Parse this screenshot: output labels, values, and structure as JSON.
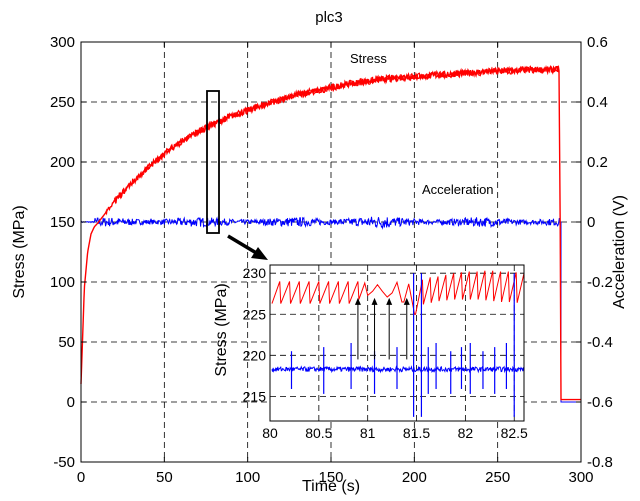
{
  "chart_data": {
    "type": "line",
    "title": "plc3",
    "xlabel": "Time (s)",
    "ylabel": "Stress (MPa)",
    "ylabel_right": "Acceleration (V)",
    "xlim": [
      0,
      300
    ],
    "ylim": [
      -50,
      300
    ],
    "ylim_right": [
      -0.8,
      0.6
    ],
    "x_ticks": [
      "0",
      "50",
      "100",
      "150",
      "200",
      "250",
      "300"
    ],
    "y_ticks": [
      "-50",
      "0",
      "50",
      "100",
      "150",
      "200",
      "250",
      "300"
    ],
    "y_right_ticks": [
      "-0.8",
      "-0.6",
      "-0.4",
      "-0.2",
      "0",
      "0.2",
      "0.4",
      "0.6"
    ],
    "grid": true,
    "series": [
      {
        "name": "Stress",
        "color": "#ff0000",
        "axis": "left",
        "x": [
          0,
          2,
          4,
          6,
          8,
          10,
          15,
          20,
          30,
          40,
          50,
          60,
          70,
          80,
          90,
          100,
          110,
          120,
          130,
          140,
          150,
          160,
          170,
          180,
          190,
          200,
          210,
          220,
          230,
          240,
          250,
          260,
          270,
          280,
          287,
          287.5,
          288,
          290,
          300
        ],
        "y": [
          15,
          95,
          125,
          140,
          146,
          149,
          158,
          167,
          182,
          195,
          207,
          217,
          225,
          232,
          238,
          243,
          248,
          252,
          256,
          259,
          262,
          265,
          267,
          269,
          270,
          271,
          272,
          273,
          274,
          275,
          276,
          276,
          277,
          277,
          277,
          150,
          2,
          2,
          2
        ]
      },
      {
        "name": "Acceleration",
        "color": "#0000ff",
        "axis": "right",
        "x": [
          0,
          288,
          288,
          300
        ],
        "y": [
          0,
          0,
          -0.6,
          -0.6
        ]
      }
    ],
    "annotations": [
      "Stress",
      "Acceleration"
    ],
    "inset": {
      "xlim": [
        80,
        82.6
      ],
      "ylim": [
        212,
        231
      ],
      "x_ticks": [
        "80",
        "80.5",
        "81",
        "81.5",
        "82",
        "82.5"
      ],
      "y_ticks": [
        "215",
        "220",
        "225",
        "230"
      ],
      "ylabel": "Stress (MPa)",
      "stress_sawtooth": {
        "x": [
          80.02,
          80.1,
          80.11,
          80.2,
          80.21,
          80.3,
          80.31,
          80.4,
          80.41,
          80.5,
          80.51,
          80.6,
          80.61,
          80.7,
          80.71,
          80.8,
          80.81,
          80.9,
          80.91,
          80.97,
          81.0,
          81.05,
          81.1,
          81.15,
          81.2,
          81.25,
          81.3,
          81.35,
          81.37,
          81.42,
          81.48,
          81.49,
          81.56,
          81.57,
          81.64,
          81.65,
          81.72,
          81.73,
          81.8,
          81.81,
          81.88,
          81.89,
          81.96,
          81.97,
          82.04,
          82.05,
          82.12,
          82.13,
          82.2,
          82.21,
          82.28,
          82.29,
          82.36,
          82.37,
          82.44,
          82.45,
          82.52,
          82.53,
          82.6
        ],
        "y": [
          226.3,
          229.0,
          226.3,
          229.0,
          226.3,
          229.0,
          226.3,
          229.0,
          226.3,
          229.0,
          226.3,
          229.0,
          226.3,
          229.0,
          226.3,
          229.0,
          226.3,
          229.0,
          226.8,
          228.8,
          227.3,
          227.8,
          228.6,
          227.8,
          227.1,
          227.6,
          228.9,
          226.5,
          226.5,
          228.7,
          225.0,
          225.0,
          229.2,
          226.2,
          229.5,
          226.4,
          229.6,
          226.6,
          229.8,
          226.7,
          230.0,
          226.8,
          230.1,
          226.8,
          230.2,
          226.8,
          230.2,
          226.8,
          230.3,
          226.7,
          230.3,
          226.6,
          230.2,
          226.5,
          230.2,
          226.5,
          230.1,
          226.4,
          230.0
        ]
      },
      "acceleration_baseline": 218.3,
      "acceleration_spikes_x": [
        80.22,
        80.55,
        80.83,
        81.07,
        81.3,
        81.47,
        81.55,
        81.62,
        81.7,
        81.85,
        81.96,
        82.05,
        82.18,
        82.3,
        82.42,
        82.5
      ]
    }
  }
}
